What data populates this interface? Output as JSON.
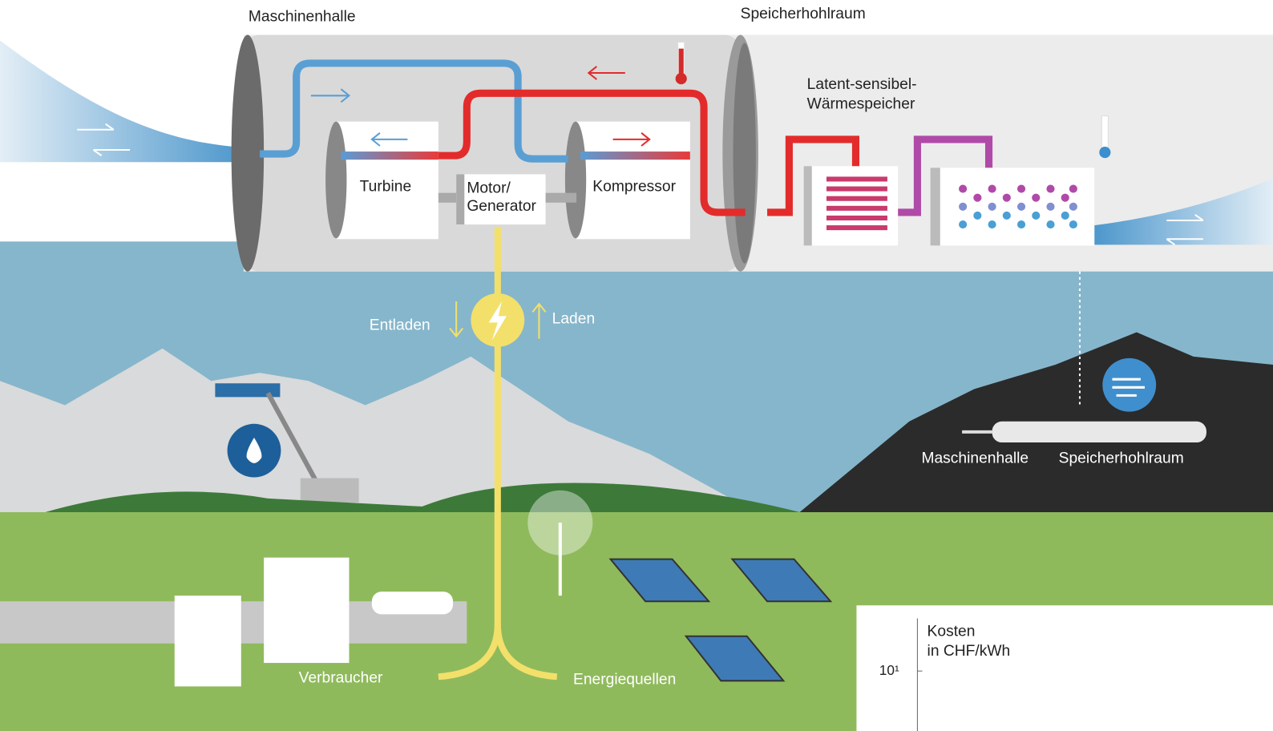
{
  "top_labels": {
    "machine_hall": "Maschinenhalle",
    "storage_cavern": "Speicherhohlraum",
    "heat_storage": [
      "Latent-sensibel-",
      "Wärmespeicher"
    ]
  },
  "components": {
    "turbine": "Turbine",
    "motor_generator": [
      "Motor/",
      "Generator"
    ],
    "compressor": "Kompressor"
  },
  "flow": {
    "discharge": "Entladen",
    "charge": "Laden"
  },
  "mountain_labels": {
    "machine_hall": "Maschinenhalle",
    "storage_cavern": "Speicherhohlraum"
  },
  "ground_labels": {
    "consumers": "Verbraucher",
    "energy_sources": "Energiequellen"
  },
  "cost_panel": {
    "title": [
      "Kosten",
      "in CHF/kWh"
    ],
    "tick": "10¹"
  }
}
